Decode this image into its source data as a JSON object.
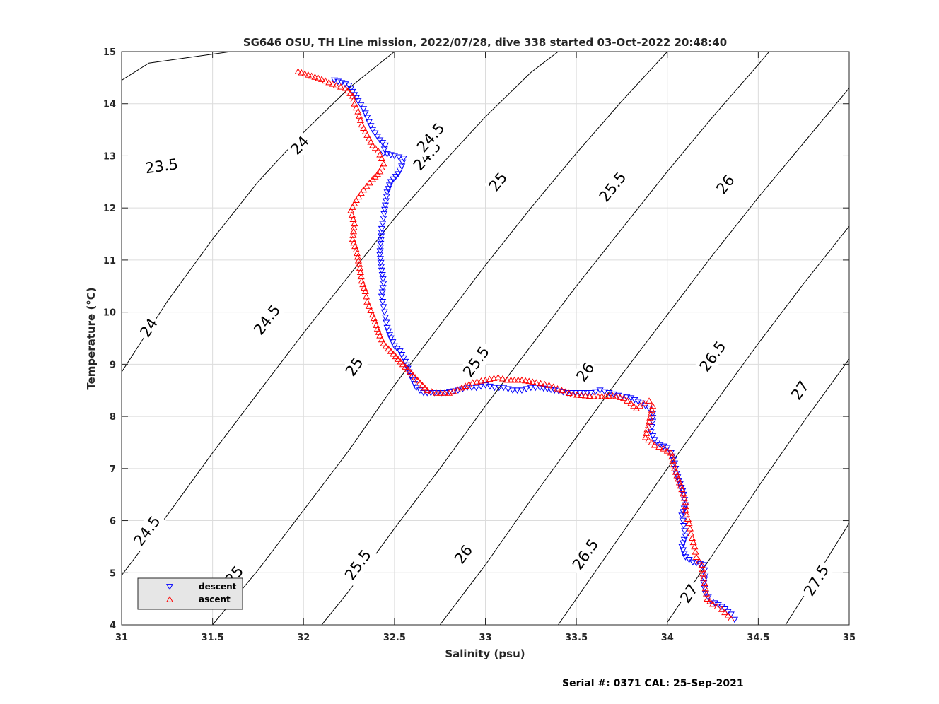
{
  "chart_data": {
    "type": "scatter",
    "title": "SG646 OSU, TH Line mission, 2022/07/28, dive 338 started 03-Oct-2022 20:48:40",
    "xlabel": "Salinity (psu)",
    "ylabel": "Temperature (°C)",
    "xlim": [
      31,
      35
    ],
    "ylim": [
      4,
      15
    ],
    "xticks": [
      "31",
      "31.5",
      "32",
      "32.5",
      "33",
      "33.5",
      "34",
      "34.5",
      "35"
    ],
    "yticks": [
      "4",
      "5",
      "6",
      "7",
      "8",
      "9",
      "10",
      "11",
      "12",
      "13",
      "14",
      "15"
    ],
    "grid": true,
    "legend_position": "bottom-left",
    "footer": "Serial #: 0371  CAL: 25-Sep-2021",
    "isopycnals": [
      {
        "label": "23.5",
        "points": [
          [
            31.0,
            14.45
          ],
          [
            31.15,
            14.78
          ],
          [
            31.6,
            15.0
          ]
        ],
        "label_at": [
          31.22,
          12.8
        ]
      },
      {
        "label": "24",
        "points": [
          [
            31.0,
            8.85
          ],
          [
            31.25,
            10.2
          ],
          [
            31.5,
            11.4
          ],
          [
            31.75,
            12.5
          ],
          [
            32.0,
            13.45
          ],
          [
            32.25,
            14.3
          ],
          [
            32.5,
            15.0
          ]
        ],
        "label_at": [
          31.98,
          13.2
        ]
      },
      {
        "label": "24.5",
        "points": [
          [
            31.0,
            4.95
          ],
          [
            31.25,
            6.1
          ],
          [
            31.5,
            7.3
          ],
          [
            31.75,
            8.45
          ],
          [
            32.0,
            9.6
          ],
          [
            32.25,
            10.7
          ],
          [
            32.5,
            11.8
          ],
          [
            32.75,
            12.8
          ],
          [
            33.0,
            13.75
          ],
          [
            33.25,
            14.6
          ],
          [
            33.4,
            15.0
          ]
        ],
        "label_at": [
          32.68,
          13.0
        ]
      },
      {
        "label": "25",
        "points": [
          [
            31.5,
            4.0
          ],
          [
            31.75,
            5.05
          ],
          [
            32.0,
            6.2
          ],
          [
            32.25,
            7.35
          ],
          [
            32.5,
            8.6
          ],
          [
            32.75,
            9.75
          ],
          [
            33.0,
            10.9
          ],
          [
            33.25,
            12.0
          ],
          [
            33.5,
            13.05
          ],
          [
            33.75,
            14.05
          ],
          [
            34.0,
            15.0
          ]
        ],
        "label_at": [
          33.07,
          12.5
        ]
      },
      {
        "label": "25.5",
        "points": [
          [
            32.1,
            4.0
          ],
          [
            32.25,
            4.65
          ],
          [
            32.5,
            5.85
          ],
          [
            32.75,
            7.0
          ],
          [
            33.0,
            8.2
          ],
          [
            33.25,
            9.35
          ],
          [
            33.5,
            10.5
          ],
          [
            33.75,
            11.6
          ],
          [
            34.0,
            12.7
          ],
          [
            34.25,
            13.75
          ],
          [
            34.5,
            14.75
          ],
          [
            34.56,
            15.0
          ]
        ],
        "label_at": [
          33.7,
          12.4
        ]
      },
      {
        "label": "26",
        "points": [
          [
            32.75,
            4.0
          ],
          [
            33.0,
            5.15
          ],
          [
            33.25,
            6.4
          ],
          [
            33.5,
            7.6
          ],
          [
            33.75,
            8.8
          ],
          [
            34.0,
            9.95
          ],
          [
            34.25,
            11.1
          ],
          [
            34.5,
            12.2
          ],
          [
            34.75,
            13.25
          ],
          [
            35.0,
            14.3
          ]
        ],
        "label_at": [
          34.32,
          12.45
        ]
      },
      {
        "label": "26.5",
        "points": [
          [
            33.4,
            4.0
          ],
          [
            33.5,
            4.5
          ],
          [
            33.75,
            5.75
          ],
          [
            34.0,
            7.0
          ],
          [
            34.25,
            8.2
          ],
          [
            34.5,
            9.4
          ],
          [
            34.75,
            10.55
          ],
          [
            35.0,
            11.65
          ]
        ],
        "label_at": [
          34.25,
          9.15
        ]
      },
      {
        "label": "27",
        "points": [
          [
            34.0,
            4.05
          ],
          [
            34.25,
            5.35
          ],
          [
            34.5,
            6.65
          ],
          [
            34.75,
            7.9
          ],
          [
            35.0,
            9.1
          ]
        ],
        "label_at": [
          34.73,
          8.5
        ]
      },
      {
        "label": "27.5",
        "points": [
          [
            34.65,
            4.0
          ],
          [
            34.75,
            4.55
          ],
          [
            35.0,
            5.95
          ]
        ],
        "label_at": [
          34.82,
          4.85
        ]
      }
    ],
    "extra_isopycnal_labels": [
      {
        "label": "24",
        "at": [
          31.15,
          9.7
        ]
      },
      {
        "label": "24.5",
        "at": [
          31.8,
          9.85
        ]
      },
      {
        "label": "24.5",
        "at": [
          32.7,
          13.35
        ]
      },
      {
        "label": "24.5",
        "at": [
          31.14,
          5.8
        ]
      },
      {
        "label": "25",
        "at": [
          32.28,
          8.95
        ]
      },
      {
        "label": "25",
        "at": [
          31.62,
          4.95
        ]
      },
      {
        "label": "25.5",
        "at": [
          32.95,
          9.05
        ]
      },
      {
        "label": "25.5",
        "at": [
          32.3,
          5.15
        ]
      },
      {
        "label": "26",
        "at": [
          33.55,
          8.85
        ]
      },
      {
        "label": "26",
        "at": [
          32.88,
          5.35
        ]
      },
      {
        "label": "26.5",
        "at": [
          33.55,
          5.35
        ]
      },
      {
        "label": "27",
        "at": [
          34.12,
          4.6
        ]
      }
    ],
    "series": [
      {
        "name": "descent",
        "color": "#0000ff",
        "marker": "triangle-down",
        "points": [
          [
            32.17,
            14.45
          ],
          [
            32.21,
            14.4
          ],
          [
            32.25,
            14.35
          ],
          [
            32.3,
            14.05
          ],
          [
            32.33,
            13.9
          ],
          [
            32.36,
            13.65
          ],
          [
            32.38,
            13.5
          ],
          [
            32.42,
            13.3
          ],
          [
            32.45,
            13.2
          ],
          [
            32.44,
            13.05
          ],
          [
            32.5,
            13.0
          ],
          [
            32.55,
            12.95
          ],
          [
            32.54,
            12.8
          ],
          [
            32.52,
            12.65
          ],
          [
            32.48,
            12.5
          ],
          [
            32.46,
            12.3
          ],
          [
            32.45,
            12.05
          ],
          [
            32.44,
            11.8
          ],
          [
            32.43,
            11.6
          ],
          [
            32.42,
            11.1
          ],
          [
            32.43,
            10.8
          ],
          [
            32.44,
            10.55
          ],
          [
            32.43,
            10.3
          ],
          [
            32.44,
            10.1
          ],
          [
            32.45,
            9.9
          ],
          [
            32.46,
            9.7
          ],
          [
            32.48,
            9.5
          ],
          [
            32.5,
            9.35
          ],
          [
            32.53,
            9.25
          ],
          [
            32.56,
            9.05
          ],
          [
            32.58,
            8.85
          ],
          [
            32.6,
            8.7
          ],
          [
            32.62,
            8.55
          ],
          [
            32.66,
            8.45
          ],
          [
            32.72,
            8.45
          ],
          [
            32.78,
            8.45
          ],
          [
            32.85,
            8.5
          ],
          [
            32.9,
            8.55
          ],
          [
            32.95,
            8.55
          ],
          [
            33.0,
            8.6
          ],
          [
            33.05,
            8.55
          ],
          [
            33.1,
            8.55
          ],
          [
            33.15,
            8.5
          ],
          [
            33.2,
            8.5
          ],
          [
            33.25,
            8.55
          ],
          [
            33.3,
            8.55
          ],
          [
            33.38,
            8.5
          ],
          [
            33.45,
            8.45
          ],
          [
            33.52,
            8.45
          ],
          [
            33.58,
            8.45
          ],
          [
            33.63,
            8.5
          ],
          [
            33.68,
            8.45
          ],
          [
            33.73,
            8.4
          ],
          [
            33.8,
            8.35
          ],
          [
            33.86,
            8.25
          ],
          [
            33.9,
            8.15
          ],
          [
            33.92,
            8.05
          ],
          [
            33.92,
            7.9
          ],
          [
            33.91,
            7.7
          ],
          [
            33.93,
            7.55
          ],
          [
            33.96,
            7.45
          ],
          [
            34.0,
            7.4
          ],
          [
            34.02,
            7.3
          ],
          [
            34.04,
            7.1
          ],
          [
            34.05,
            6.9
          ],
          [
            34.07,
            6.7
          ],
          [
            34.09,
            6.5
          ],
          [
            34.1,
            6.3
          ],
          [
            34.08,
            6.1
          ],
          [
            34.09,
            5.9
          ],
          [
            34.1,
            5.7
          ],
          [
            34.08,
            5.5
          ],
          [
            34.1,
            5.3
          ],
          [
            34.14,
            5.2
          ],
          [
            34.2,
            5.15
          ],
          [
            34.21,
            4.95
          ],
          [
            34.2,
            4.8
          ],
          [
            34.21,
            4.6
          ],
          [
            34.24,
            4.45
          ],
          [
            34.3,
            4.35
          ],
          [
            34.35,
            4.2
          ],
          [
            34.37,
            4.1
          ]
        ]
      },
      {
        "name": "ascent",
        "color": "#ff0000",
        "marker": "triangle-up",
        "points": [
          [
            31.97,
            14.62
          ],
          [
            32.1,
            14.47
          ],
          [
            32.18,
            14.35
          ],
          [
            32.23,
            14.3
          ],
          [
            32.27,
            14.15
          ],
          [
            32.28,
            14.0
          ],
          [
            32.3,
            13.85
          ],
          [
            32.32,
            13.6
          ],
          [
            32.35,
            13.4
          ],
          [
            32.38,
            13.2
          ],
          [
            32.41,
            13.1
          ],
          [
            32.43,
            12.95
          ],
          [
            32.44,
            12.85
          ],
          [
            32.42,
            12.7
          ],
          [
            32.38,
            12.55
          ],
          [
            32.33,
            12.35
          ],
          [
            32.29,
            12.15
          ],
          [
            32.26,
            11.95
          ],
          [
            32.28,
            11.7
          ],
          [
            32.27,
            11.4
          ],
          [
            32.29,
            11.2
          ],
          [
            32.31,
            10.85
          ],
          [
            32.32,
            10.6
          ],
          [
            32.34,
            10.4
          ],
          [
            32.35,
            10.2
          ],
          [
            32.38,
            9.95
          ],
          [
            32.4,
            9.75
          ],
          [
            32.42,
            9.55
          ],
          [
            32.44,
            9.4
          ],
          [
            32.48,
            9.25
          ],
          [
            32.52,
            9.1
          ],
          [
            32.56,
            8.95
          ],
          [
            32.6,
            8.8
          ],
          [
            32.64,
            8.65
          ],
          [
            32.68,
            8.5
          ],
          [
            32.73,
            8.45
          ],
          [
            32.8,
            8.45
          ],
          [
            32.87,
            8.55
          ],
          [
            32.93,
            8.65
          ],
          [
            33.0,
            8.7
          ],
          [
            33.07,
            8.75
          ],
          [
            33.12,
            8.7
          ],
          [
            33.2,
            8.7
          ],
          [
            33.28,
            8.65
          ],
          [
            33.35,
            8.6
          ],
          [
            33.42,
            8.5
          ],
          [
            33.48,
            8.42
          ],
          [
            33.55,
            8.4
          ],
          [
            33.62,
            8.38
          ],
          [
            33.7,
            8.4
          ],
          [
            33.76,
            8.35
          ],
          [
            33.8,
            8.25
          ],
          [
            33.83,
            8.15
          ],
          [
            33.87,
            8.25
          ],
          [
            33.9,
            8.3
          ],
          [
            33.92,
            8.2
          ],
          [
            33.9,
            7.9
          ],
          [
            33.88,
            7.6
          ],
          [
            33.93,
            7.45
          ],
          [
            33.98,
            7.38
          ],
          [
            34.02,
            7.3
          ],
          [
            34.04,
            7.0
          ],
          [
            34.06,
            6.8
          ],
          [
            34.08,
            6.6
          ],
          [
            34.1,
            6.35
          ],
          [
            34.1,
            6.2
          ],
          [
            34.12,
            5.95
          ],
          [
            34.13,
            5.75
          ],
          [
            34.15,
            5.5
          ],
          [
            34.16,
            5.3
          ],
          [
            34.19,
            5.15
          ],
          [
            34.2,
            4.9
          ],
          [
            34.21,
            4.7
          ],
          [
            34.22,
            4.5
          ],
          [
            34.25,
            4.4
          ],
          [
            34.3,
            4.3
          ],
          [
            34.35,
            4.12
          ]
        ]
      }
    ]
  }
}
